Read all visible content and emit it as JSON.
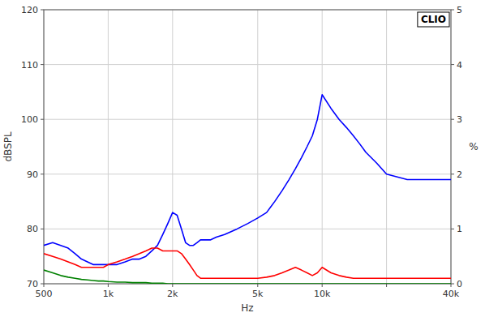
{
  "chart_data": {
    "type": "line",
    "log": "x",
    "grid": true,
    "xlabel": "Hz",
    "ylabel": "dBSPL",
    "y2label": "%",
    "annotations": [
      {
        "text": "CLIO"
      }
    ],
    "xlim": [
      500,
      40000
    ],
    "ylim": [
      70,
      120
    ],
    "y2lim": [
      0,
      5
    ],
    "xticks": [
      500,
      {
        "value": 1000,
        "label": "1k"
      },
      {
        "value": 2000,
        "label": "2k"
      },
      {
        "value": 5000,
        "label": "5k"
      },
      {
        "value": 10000,
        "label": "10k"
      },
      {
        "value": 20000,
        "label": null
      },
      {
        "value": 40000,
        "label": "40k"
      }
    ],
    "yticks": [
      70,
      80,
      90,
      100,
      110,
      120
    ],
    "y2ticks": [
      0,
      1,
      2,
      3,
      4,
      5
    ],
    "series": [
      {
        "color": "#0000ff",
        "x": [
          500,
          550,
          600,
          650,
          700,
          750,
          800,
          850,
          900,
          950,
          1000,
          1100,
          1200,
          1300,
          1400,
          1500,
          1600,
          1700,
          1800,
          1900,
          2000,
          2100,
          2200,
          2300,
          2400,
          2500,
          2600,
          2700,
          2800,
          2900,
          3000,
          3200,
          3500,
          4000,
          4500,
          5000,
          5500,
          6000,
          6500,
          7000,
          7500,
          8000,
          8500,
          9000,
          9500,
          10000,
          11000,
          12000,
          13000,
          14000,
          15000,
          16000,
          18000,
          20000,
          25000,
          30000,
          35000,
          40000
        ],
        "values": [
          77,
          77.5,
          77,
          76.5,
          75.5,
          74.5,
          74,
          73.5,
          73.5,
          73.5,
          73.5,
          73.5,
          74,
          74.5,
          74.5,
          75,
          76,
          77,
          79,
          81,
          83,
          82.5,
          80,
          77.5,
          77,
          77,
          77.5,
          78,
          78,
          78,
          78,
          78.5,
          79,
          80,
          81,
          82,
          83,
          85,
          87,
          89,
          91,
          93,
          95,
          97,
          100,
          104.5,
          102,
          100,
          98.5,
          97,
          95.5,
          94,
          92,
          90,
          89,
          89,
          89,
          89
        ]
      },
      {
        "color": "#ff0000",
        "x": [
          500,
          550,
          600,
          650,
          700,
          750,
          800,
          850,
          900,
          950,
          1000,
          1100,
          1200,
          1300,
          1400,
          1500,
          1600,
          1700,
          1800,
          1900,
          2000,
          2100,
          2200,
          2300,
          2400,
          2500,
          2600,
          2700,
          2800,
          2900,
          3000,
          3200,
          3500,
          4000,
          4500,
          5000,
          5500,
          6000,
          6500,
          7000,
          7500,
          8000,
          8500,
          9000,
          9500,
          10000,
          11000,
          12000,
          13000,
          14000,
          15000,
          16000,
          18000,
          20000,
          25000,
          30000,
          35000,
          40000
        ],
        "values": [
          75.5,
          75,
          74.5,
          74,
          73.5,
          73,
          73,
          73,
          73,
          73,
          73.5,
          74,
          74.5,
          75,
          75.5,
          76,
          76.5,
          76.5,
          76,
          76,
          76,
          76,
          75.5,
          74.5,
          73.5,
          72.5,
          71.5,
          71,
          71,
          71,
          71,
          71,
          71,
          71,
          71,
          71,
          71.2,
          71.5,
          72,
          72.5,
          73,
          72.5,
          72,
          71.5,
          72,
          73,
          72,
          71.5,
          71.2,
          71,
          71,
          71,
          71,
          71,
          71,
          71,
          71,
          71
        ]
      },
      {
        "color": "#008000",
        "x": [
          500,
          550,
          600,
          650,
          700,
          750,
          800,
          850,
          900,
          950,
          1000,
          1100,
          1200,
          1300,
          1400,
          1500,
          1600,
          1700,
          1800,
          1900,
          2000,
          2500,
          3000,
          3500,
          4000,
          5000,
          6000,
          7000,
          8000,
          10000,
          12000,
          15000,
          20000,
          30000,
          40000
        ],
        "values": [
          72.5,
          72,
          71.5,
          71.2,
          71,
          70.8,
          70.7,
          70.6,
          70.5,
          70.5,
          70.4,
          70.3,
          70.3,
          70.2,
          70.2,
          70.2,
          70.1,
          70.1,
          70.1,
          70.0,
          70.0,
          70.0,
          70.0,
          70.0,
          70.0,
          70.0,
          70.0,
          70.0,
          70.0,
          70.0,
          70.0,
          70.0,
          70.0,
          70.0,
          70.0
        ]
      }
    ]
  }
}
